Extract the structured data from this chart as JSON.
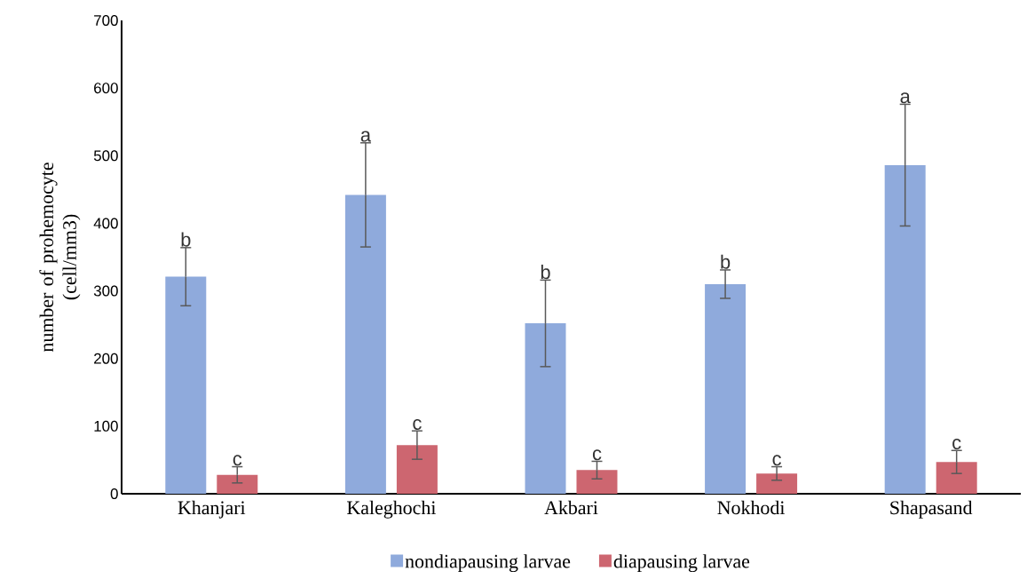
{
  "chart_data": {
    "type": "bar",
    "categories": [
      "Khanjari",
      "Kaleghochi",
      "Akbari",
      "Nokhodi",
      "Shapasand"
    ],
    "ylabel": "number of prohemocyte (cell/mm3)",
    "ylim": [
      0,
      700
    ],
    "yticks": [
      0,
      100,
      200,
      300,
      400,
      500,
      600,
      700
    ],
    "legend": "bottom",
    "series": [
      {
        "name": "nondiapausing larvae",
        "color": "#8faadc",
        "values": [
          321,
          442,
          252,
          310,
          486
        ],
        "errors": [
          43,
          77,
          64,
          21,
          90
        ],
        "value_labels": [
          "b",
          "a",
          "b",
          "b",
          "a"
        ]
      },
      {
        "name": "diapausing larvae",
        "color": "#cd6670",
        "values": [
          28,
          72,
          35,
          30,
          47
        ],
        "errors": [
          12,
          21,
          13,
          10,
          17
        ],
        "value_labels": [
          "c",
          "c",
          "c",
          "c",
          "c"
        ]
      }
    ]
  }
}
